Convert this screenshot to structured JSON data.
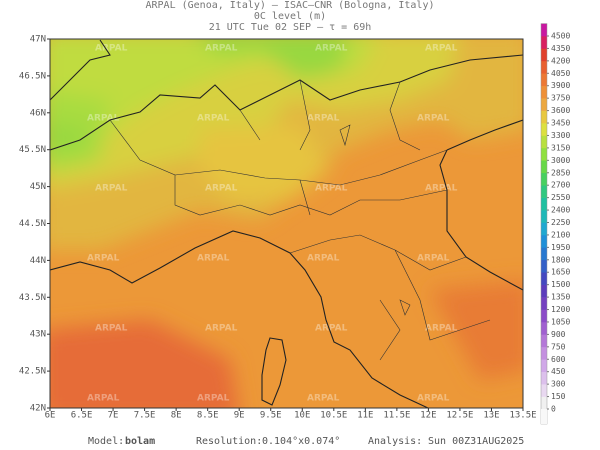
{
  "header": {
    "line1": "ARPAL (Genoa, Italy)  —  ISAC—CNR (Bologna, Italy)",
    "line2": "0C level (m)",
    "line3": "21 UTC Tue 02 SEP  —  τ = 69h"
  },
  "map": {
    "watermark": "ARPAL",
    "lon_range": [
      6,
      13.5
    ],
    "lat_range": [
      42,
      47
    ],
    "lon_ticks": [
      {
        "value": 6,
        "label": "6E"
      },
      {
        "value": 6.5,
        "label": "6.5E"
      },
      {
        "value": 7,
        "label": "7E"
      },
      {
        "value": 7.5,
        "label": "7.5E"
      },
      {
        "value": 8,
        "label": "8E"
      },
      {
        "value": 8.5,
        "label": "8.5E"
      },
      {
        "value": 9,
        "label": "9E"
      },
      {
        "value": 9.5,
        "label": "9.5E"
      },
      {
        "value": 10,
        "label": "10E"
      },
      {
        "value": 10.5,
        "label": "10.5E"
      },
      {
        "value": 11,
        "label": "11E"
      },
      {
        "value": 11.5,
        "label": "11.5E"
      },
      {
        "value": 12,
        "label": "12E"
      },
      {
        "value": 12.5,
        "label": "12.5E"
      },
      {
        "value": 13,
        "label": "13E"
      },
      {
        "value": 13.5,
        "label": "13.5E"
      }
    ],
    "lat_ticks": [
      {
        "value": 42,
        "label": "42N"
      },
      {
        "value": 42.5,
        "label": "42.5N"
      },
      {
        "value": 43,
        "label": "43N"
      },
      {
        "value": 43.5,
        "label": "43.5N"
      },
      {
        "value": 44,
        "label": "44N"
      },
      {
        "value": 44.5,
        "label": "44.5N"
      },
      {
        "value": 45,
        "label": "45N"
      },
      {
        "value": 45.5,
        "label": "45.5N"
      },
      {
        "value": 46,
        "label": "46N"
      },
      {
        "value": 46.5,
        "label": "46.5N"
      },
      {
        "value": 47,
        "label": "47N"
      }
    ]
  },
  "colorbar": {
    "levels": [
      0,
      150,
      300,
      450,
      600,
      750,
      900,
      1050,
      1200,
      1350,
      1500,
      1650,
      1800,
      1950,
      2100,
      2250,
      2400,
      2550,
      2700,
      2850,
      3000,
      3150,
      3300,
      3450,
      3600,
      3750,
      3900,
      4050,
      4200,
      4350,
      4500
    ],
    "colors": [
      "#f0f0f0",
      "#e8d8f0",
      "#dcc0ec",
      "#d0a8e8",
      "#c490e0",
      "#b478d8",
      "#a060d0",
      "#8c4cc8",
      "#7440c0",
      "#5c3cbc",
      "#4448c0",
      "#3460c8",
      "#2878d0",
      "#2090d8",
      "#20a8d0",
      "#20b8b8",
      "#20c0a0",
      "#30c880",
      "#48d060",
      "#68d848",
      "#90e040",
      "#b8e040",
      "#dce040",
      "#e8c840",
      "#eca840",
      "#ee9038",
      "#ec7834",
      "#e86030",
      "#e0402c",
      "#d82060",
      "#c818a0"
    ]
  },
  "footer": {
    "model_label": "Model:",
    "model": "bolam",
    "resolution_label": "Resolution:",
    "resolution": "0.104°x0.074°",
    "analysis_label": "Analysis:",
    "analysis": "Sun 00Z31AUG2025"
  }
}
